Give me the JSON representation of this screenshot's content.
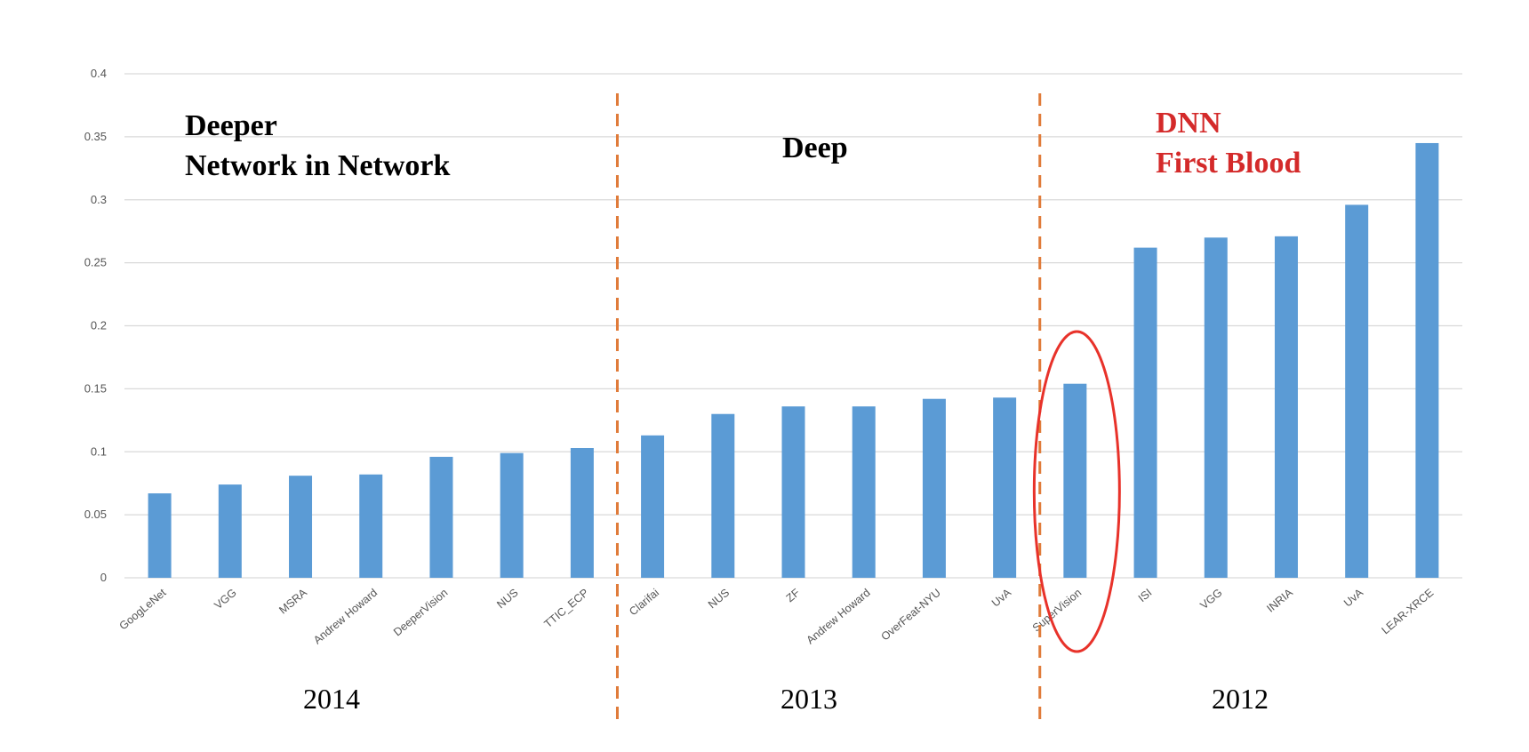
{
  "chart_data": {
    "type": "bar",
    "ylim": [
      0,
      0.4
    ],
    "yticks": [
      "0",
      "0.05",
      "0.1",
      "0.15",
      "0.2",
      "0.25",
      "0.3",
      "0.35",
      "0.4"
    ],
    "grid": true,
    "bar_color": "#5b9bd5",
    "categories": [
      "GoogLeNet",
      "VGG",
      "MSRA",
      "Andrew Howard",
      "DeeperVision",
      "NUS",
      "TTIC_ECP",
      "Clarifai",
      "NUS",
      "ZF",
      "Andrew Howard",
      "OverFeat-NYU",
      "UvA",
      "SuperVision",
      "ISI",
      "VGG",
      "INRIA",
      "UvA",
      "LEAR-XRCE"
    ],
    "values": [
      0.067,
      0.074,
      0.081,
      0.082,
      0.096,
      0.099,
      0.103,
      0.113,
      0.13,
      0.136,
      0.136,
      0.142,
      0.143,
      0.154,
      0.262,
      0.27,
      0.271,
      0.296,
      0.345
    ],
    "groups": [
      {
        "year": "2014",
        "lines": [
          "Deeper",
          "Network in Network"
        ],
        "color": "#000000"
      },
      {
        "year": "2013",
        "lines": [
          "Deep"
        ],
        "color": "#000000"
      },
      {
        "year": "2012",
        "lines": [
          "DNN",
          "First Blood"
        ],
        "color": "#d42a2a"
      }
    ],
    "divider_color": "#e07b39",
    "highlight": {
      "category_index": 13,
      "color": "#e8322a"
    }
  }
}
